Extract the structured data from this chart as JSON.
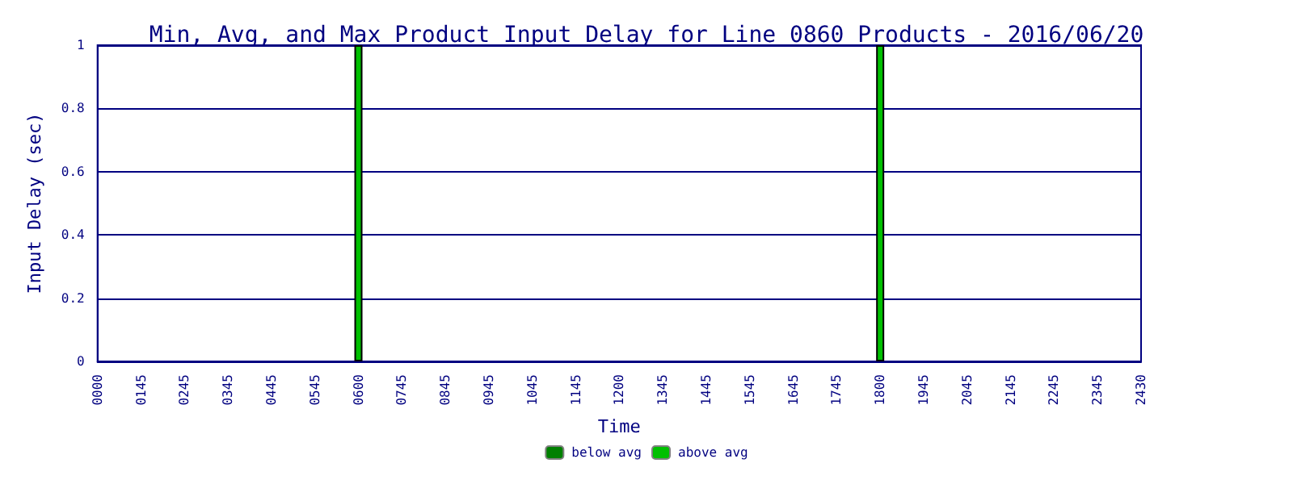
{
  "chart_data": {
    "type": "bar",
    "title": "Min, Avg, and Max Product Input Delay for Line 0860 Products - 2016/06/20",
    "xlabel": "Time",
    "ylabel": "Input Delay (sec)",
    "categories": [
      "0000",
      "0145",
      "0245",
      "0345",
      "0445",
      "0545",
      "0600",
      "0745",
      "0845",
      "0945",
      "1045",
      "1145",
      "1200",
      "1345",
      "1445",
      "1545",
      "1645",
      "1745",
      "1800",
      "1945",
      "2045",
      "2145",
      "2245",
      "2345",
      "2430"
    ],
    "series": [
      {
        "name": "below avg",
        "color": "#008000",
        "values": [
          null,
          null,
          null,
          null,
          null,
          null,
          null,
          null,
          null,
          null,
          null,
          null,
          null,
          null,
          null,
          null,
          null,
          null,
          null,
          null,
          null,
          null,
          null,
          null,
          null
        ]
      },
      {
        "name": "above avg",
        "color": "#00c000",
        "values": [
          null,
          null,
          null,
          null,
          null,
          null,
          1,
          null,
          null,
          null,
          null,
          null,
          null,
          null,
          null,
          null,
          null,
          null,
          1,
          null,
          null,
          null,
          null,
          null,
          null
        ]
      }
    ],
    "stacked": true,
    "ylim": [
      0,
      1
    ],
    "yticks": [
      0,
      0.2,
      0.4,
      0.6,
      0.8,
      1
    ],
    "grid": "y",
    "legend": "bottom"
  }
}
